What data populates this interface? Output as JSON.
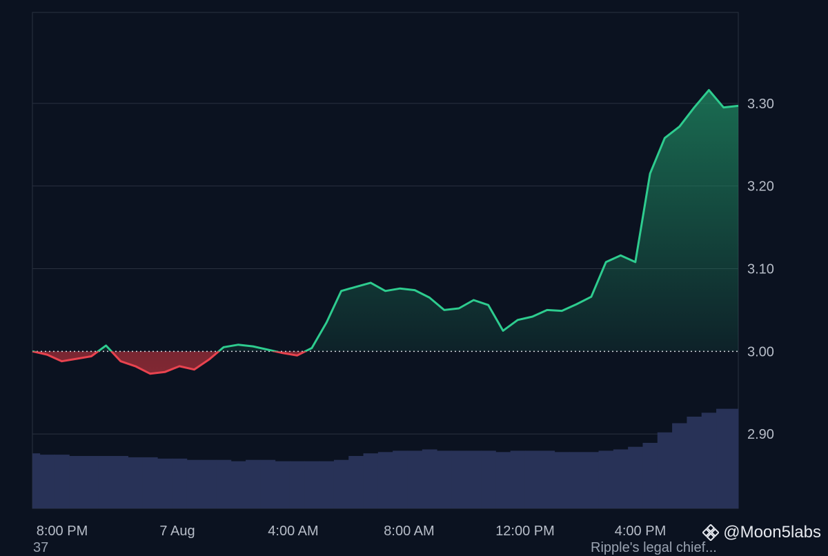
{
  "chart_data": {
    "type": "line",
    "baseline": 3.0,
    "ylim": [
      2.81,
      3.41
    ],
    "yticks": [
      {
        "value": 3.3,
        "label": "3.30"
      },
      {
        "value": 3.2,
        "label": "3.20"
      },
      {
        "value": 3.1,
        "label": "3.10"
      },
      {
        "value": 3.0,
        "label": "3.00"
      },
      {
        "value": 2.9,
        "label": "2.90"
      }
    ],
    "xticks": [
      "8:00 PM",
      "7 Aug",
      "4:00 AM",
      "8:00 AM",
      "12:00 PM",
      "4:00 PM"
    ],
    "x": [
      "6 Aug 6:45 PM",
      "6 Aug 7:15 PM",
      "6 Aug 7:45 PM",
      "6 Aug 8:15 PM",
      "6 Aug 8:45 PM",
      "6 Aug 9:15 PM",
      "6 Aug 9:45 PM",
      "6 Aug 10:15 PM",
      "6 Aug 10:45 PM",
      "6 Aug 11:15 PM",
      "6 Aug 11:45 PM",
      "7 Aug 12:15 AM",
      "7 Aug 12:45 AM",
      "7 Aug 1:15 AM",
      "7 Aug 1:45 AM",
      "7 Aug 2:15 AM",
      "7 Aug 2:45 AM",
      "7 Aug 3:15 AM",
      "7 Aug 3:45 AM",
      "7 Aug 4:15 AM",
      "7 Aug 4:45 AM",
      "7 Aug 5:15 AM",
      "7 Aug 5:45 AM",
      "7 Aug 6:15 AM",
      "7 Aug 6:45 AM",
      "7 Aug 7:15 AM",
      "7 Aug 7:45 AM",
      "7 Aug 8:15 AM",
      "7 Aug 8:45 AM",
      "7 Aug 9:15 AM",
      "7 Aug 9:45 AM",
      "7 Aug 10:15 AM",
      "7 Aug 10:45 AM",
      "7 Aug 11:15 AM",
      "7 Aug 11:45 AM",
      "7 Aug 12:15 PM",
      "7 Aug 12:45 PM",
      "7 Aug 1:15 PM",
      "7 Aug 1:45 PM",
      "7 Aug 2:15 PM",
      "7 Aug 2:45 PM",
      "7 Aug 3:15 PM",
      "7 Aug 3:45 PM",
      "7 Aug 4:15 PM",
      "7 Aug 4:45 PM",
      "7 Aug 5:15 PM",
      "7 Aug 5:45 PM",
      "7 Aug 6:15 PM",
      "7 Aug 6:30 PM"
    ],
    "series": [
      {
        "values": [
          3.0,
          2.996,
          2.988,
          2.991,
          2.994,
          3.007,
          2.988,
          2.982,
          2.973,
          2.975,
          2.982,
          2.978,
          2.99,
          3.005,
          3.008,
          3.006,
          3.002,
          2.998,
          2.995,
          3.004,
          3.035,
          3.073,
          3.078,
          3.083,
          3.073,
          3.076,
          3.074,
          3.065,
          3.05,
          3.052,
          3.062,
          3.056,
          3.025,
          3.038,
          3.042,
          3.05,
          3.049,
          3.057,
          3.066,
          3.108,
          3.116,
          3.108,
          3.215,
          3.258,
          3.272,
          3.295,
          3.316,
          3.295,
          3.297
        ],
        "up_color": "#2ecc8f",
        "down_color": "#e8434f"
      }
    ],
    "volume": [
      0.42,
      0.41,
      0.41,
      0.4,
      0.4,
      0.4,
      0.4,
      0.39,
      0.39,
      0.38,
      0.38,
      0.37,
      0.37,
      0.37,
      0.36,
      0.37,
      0.37,
      0.36,
      0.36,
      0.36,
      0.36,
      0.37,
      0.4,
      0.42,
      0.43,
      0.44,
      0.44,
      0.45,
      0.44,
      0.44,
      0.44,
      0.44,
      0.43,
      0.44,
      0.44,
      0.44,
      0.43,
      0.43,
      0.43,
      0.44,
      0.45,
      0.47,
      0.5,
      0.58,
      0.65,
      0.7,
      0.73,
      0.76,
      0.76
    ]
  },
  "watermark": {
    "text": "@Moon5labs",
    "icon": "binance-diamond-icon"
  },
  "cut_off_text": {
    "left": "37",
    "right": "Ripple's legal chief..."
  }
}
